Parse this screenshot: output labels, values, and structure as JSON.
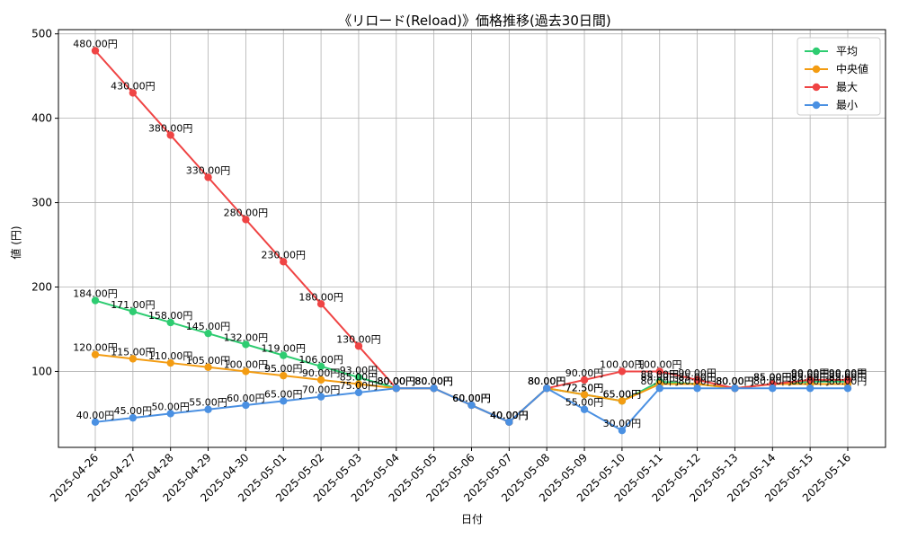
{
  "chart_data": {
    "type": "line",
    "title": "《リロード(Reload)》価格推移(過去30日間)",
    "xlabel": "日付",
    "ylabel": "値 (円)",
    "ylim": [
      10,
      505
    ],
    "yticks": [
      100,
      200,
      300,
      400,
      500
    ],
    "grid": true,
    "legend_position": "top-right",
    "label_suffix": "円",
    "categories": [
      "2025-04-26",
      "2025-04-27",
      "2025-04-28",
      "2025-04-29",
      "2025-04-30",
      "2025-05-01",
      "2025-05-02",
      "2025-05-03",
      "2025-05-04",
      "2025-05-05",
      "2025-05-06",
      "2025-05-07",
      "2025-05-08",
      "2025-05-09",
      "2025-05-10",
      "2025-05-11",
      "2025-05-12",
      "2025-05-13",
      "2025-05-14",
      "2025-05-15",
      "2025-05-16"
    ],
    "series": [
      {
        "name": "平均",
        "color": "#2ecc71",
        "values": [
          184,
          171,
          158,
          145,
          132,
          119,
          106,
          93,
          80,
          80,
          60,
          40,
          80,
          72.5,
          65,
          88,
          85,
          80,
          85,
          88,
          88
        ]
      },
      {
        "name": "中央値",
        "color": "#f39c12",
        "values": [
          120,
          115,
          110,
          105,
          100,
          95,
          90,
          85,
          80,
          80,
          60,
          40,
          80,
          72.5,
          65,
          85,
          85,
          80,
          85,
          85,
          85
        ]
      },
      {
        "name": "最大",
        "color": "#ef4444",
        "values": [
          480,
          430,
          380,
          330,
          280,
          230,
          180,
          130,
          80,
          80,
          60,
          40,
          80,
          90,
          100,
          100,
          90,
          80,
          85,
          90,
          90
        ]
      },
      {
        "name": "最小",
        "color": "#4a90e2",
        "values": [
          40,
          45,
          50,
          55,
          60,
          65,
          70,
          75,
          80,
          80,
          60,
          40,
          80,
          55,
          30,
          80,
          80,
          80,
          80,
          80,
          80
        ]
      }
    ]
  }
}
